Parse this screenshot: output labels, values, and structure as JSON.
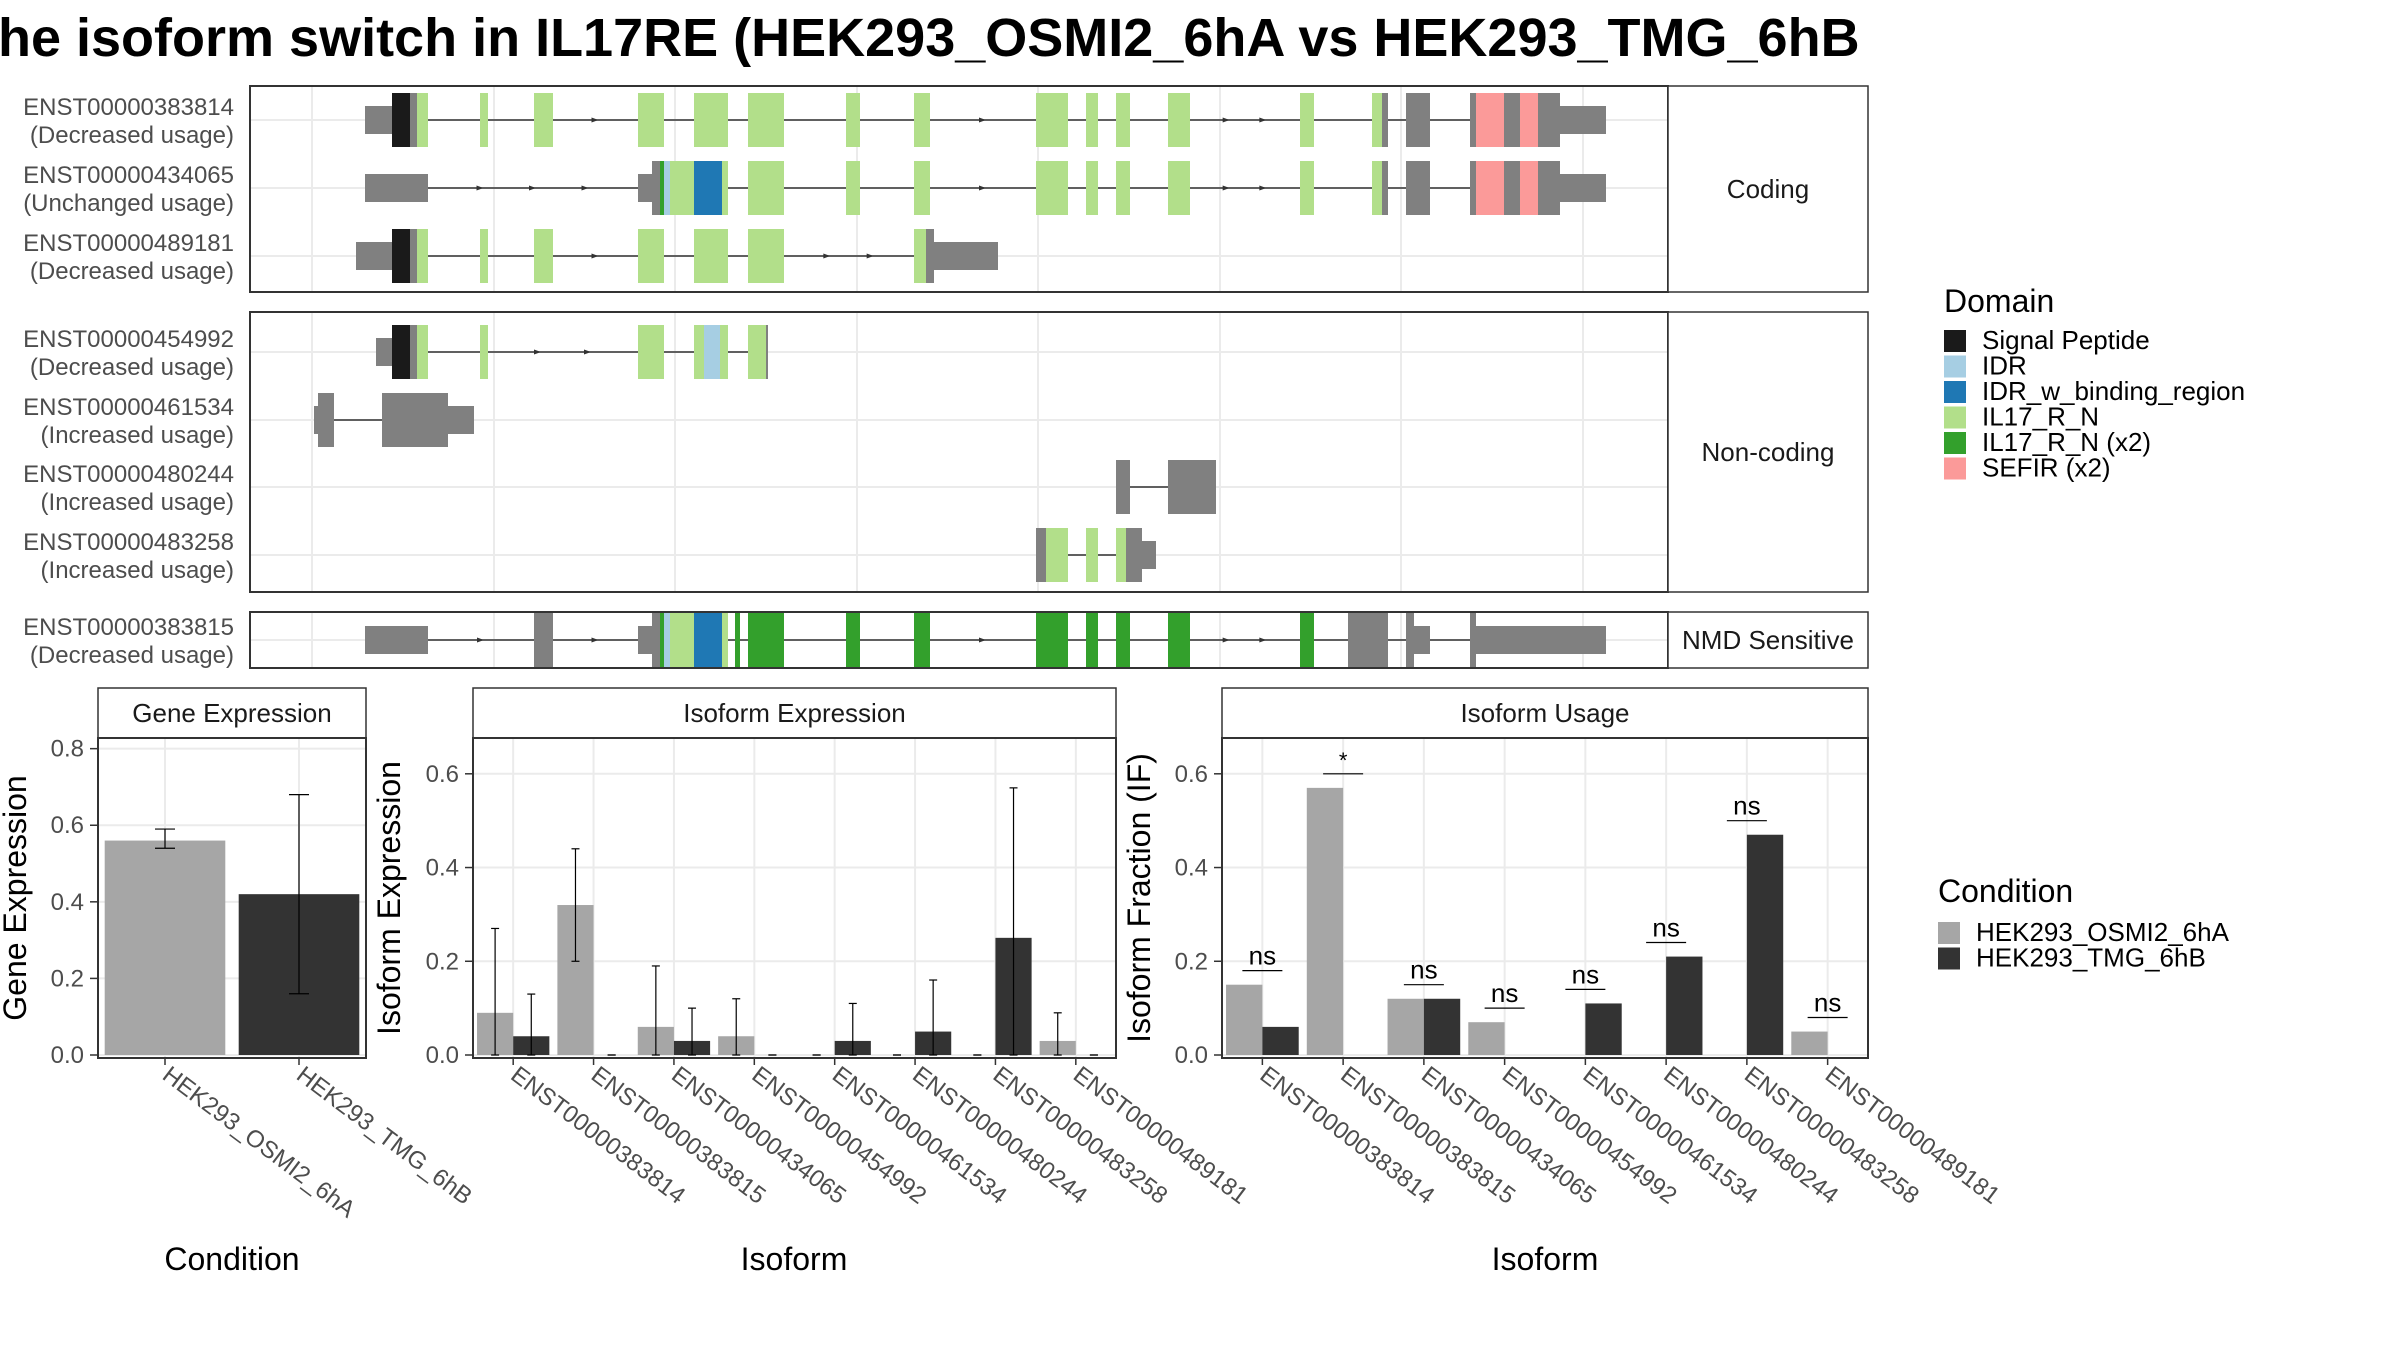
{
  "title": "he isoform switch in IL17RE (HEK293_OSMI2_6hA vs HEK293_TMG_6hB",
  "colors": {
    "signal_peptide": "#1a1a1a",
    "idr": "#a6cee3",
    "idr_w_binding_region": "#1f78b4",
    "il17_r_n": "#b2df8a",
    "il17_r_n_x2": "#33a02c",
    "sefir_x2": "#fb9a99",
    "exon": "#808080",
    "condition_a": "#a6a6a6",
    "condition_b": "#333333",
    "strip_bg": "#ffffff",
    "grid": "#ebebeb"
  },
  "transcript_panels": [
    {
      "label": "Coding",
      "tracks": [
        {
          "id": "ENST00000383814",
          "usage": "(Decreased usage)"
        },
        {
          "id": "ENST00000434065",
          "usage": "(Unchanged usage)"
        },
        {
          "id": "ENST00000489181",
          "usage": "(Decreased usage)"
        }
      ]
    },
    {
      "label": "Non-coding",
      "tracks": [
        {
          "id": "ENST00000454992",
          "usage": "(Decreased usage)"
        },
        {
          "id": "ENST00000461534",
          "usage": "(Increased usage)"
        },
        {
          "id": "ENST00000480244",
          "usage": "(Increased usage)"
        },
        {
          "id": "ENST00000483258",
          "usage": "(Increased usage)"
        }
      ]
    },
    {
      "label": "NMD Sensitive",
      "tracks": [
        {
          "id": "ENST00000383815",
          "usage": "(Decreased usage)"
        }
      ]
    }
  ],
  "domain_legend": {
    "title": "Domain",
    "items": [
      {
        "label": "Signal Peptide",
        "color": "#1a1a1a"
      },
      {
        "label": "IDR",
        "color": "#a6cee3"
      },
      {
        "label": "IDR_w_binding_region",
        "color": "#1f78b4"
      },
      {
        "label": "IL17_R_N",
        "color": "#b2df8a"
      },
      {
        "label": "IL17_R_N (x2)",
        "color": "#33a02c"
      },
      {
        "label": "SEFIR (x2)",
        "color": "#fb9a99"
      }
    ]
  },
  "condition_legend": {
    "title": "Condition",
    "items": [
      {
        "label": "HEK293_OSMI2_6hA",
        "color": "#a6a6a6"
      },
      {
        "label": "HEK293_TMG_6hB",
        "color": "#333333"
      }
    ]
  },
  "chart_data": [
    {
      "type": "bar",
      "strip": "Gene Expression",
      "xlabel": "Condition",
      "ylabel": "Gene Expression",
      "ylim": [
        0,
        0.82
      ],
      "yticks": [
        "0.0",
        "0.2",
        "0.4",
        "0.6",
        "0.8"
      ],
      "categories": [
        "HEK293_OSMI2_6hA",
        "HEK293_TMG_6hB"
      ],
      "values": [
        0.56,
        0.42
      ],
      "err_low": [
        0.54,
        0.16
      ],
      "err_high": [
        0.59,
        0.68
      ]
    },
    {
      "type": "bar",
      "strip": "Isoform Expression",
      "xlabel": "Isoform",
      "ylabel": "Isoform Expression",
      "ylim": [
        0,
        0.67
      ],
      "yticks": [
        "0.0",
        "0.2",
        "0.4",
        "0.6"
      ],
      "categories": [
        "ENST00000383814",
        "ENST00000383815",
        "ENST00000434065",
        "ENST00000454992",
        "ENST00000461534",
        "ENST00000480244",
        "ENST00000483258",
        "ENST00000489181"
      ],
      "series": [
        {
          "name": "HEK293_OSMI2_6hA",
          "values": [
            0.09,
            0.32,
            0.06,
            0.04,
            0.0,
            0.0,
            0.0,
            0.03
          ],
          "err_low": [
            0.0,
            0.2,
            0.0,
            0.0,
            0.0,
            0.0,
            0.0,
            0.0
          ],
          "err_high": [
            0.27,
            0.44,
            0.19,
            0.12,
            0.0,
            0.0,
            0.0,
            0.09
          ]
        },
        {
          "name": "HEK293_TMG_6hB",
          "values": [
            0.04,
            0.0,
            0.03,
            0.0,
            0.03,
            0.05,
            0.25,
            0.0
          ],
          "err_low": [
            0.0,
            0.0,
            0.0,
            0.0,
            0.0,
            0.0,
            0.0,
            0.0
          ],
          "err_high": [
            0.13,
            0.0,
            0.1,
            0.0,
            0.11,
            0.16,
            0.57,
            0.0
          ]
        }
      ]
    },
    {
      "type": "bar",
      "strip": "Isoform Usage",
      "xlabel": "Isoform",
      "ylabel": "Isoform Fraction (IF)",
      "ylim": [
        0,
        0.67
      ],
      "yticks": [
        "0.0",
        "0.2",
        "0.4",
        "0.6"
      ],
      "categories": [
        "ENST00000383814",
        "ENST00000383815",
        "ENST00000434065",
        "ENST00000454992",
        "ENST00000461534",
        "ENST00000480244",
        "ENST00000483258",
        "ENST00000489181"
      ],
      "series": [
        {
          "name": "HEK293_OSMI2_6hA",
          "values": [
            0.15,
            0.57,
            0.12,
            0.07,
            0.0,
            0.0,
            0.0,
            0.05
          ]
        },
        {
          "name": "HEK293_TMG_6hB",
          "values": [
            0.06,
            0.0,
            0.12,
            0.0,
            0.11,
            0.21,
            0.47,
            0.0
          ]
        }
      ],
      "annotations": [
        {
          "label": "ns",
          "value": 0.18
        },
        {
          "label": "*",
          "value": 0.6
        },
        {
          "label": "ns",
          "value": 0.15
        },
        {
          "label": "ns",
          "value": 0.1
        },
        {
          "label": "ns",
          "value": 0.14
        },
        {
          "label": "ns",
          "value": 0.24
        },
        {
          "label": "ns",
          "value": 0.5
        },
        {
          "label": "ns",
          "value": 0.08
        }
      ]
    }
  ]
}
